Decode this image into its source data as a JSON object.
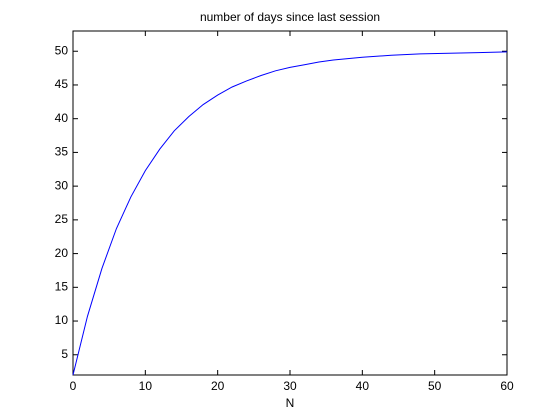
{
  "chart_data": {
    "type": "line",
    "title": "number of days since last session",
    "x_label": "N",
    "x": [
      0,
      2,
      4,
      6,
      8,
      10,
      12,
      14,
      16,
      18,
      20,
      22,
      24,
      26,
      28,
      30,
      32,
      34,
      36,
      38,
      40,
      44,
      48,
      52,
      56,
      60
    ],
    "series": [
      {
        "color": "#0000ff",
        "values": [
          2,
          10.7,
          17.8,
          23.7,
          28.4,
          32.3,
          35.5,
          38.2,
          40.3,
          42.1,
          43.5,
          44.7,
          45.6,
          46.4,
          47.1,
          47.6,
          48.0,
          48.4,
          48.7,
          48.9,
          49.1,
          49.4,
          49.6,
          49.7,
          49.8,
          49.9
        ]
      }
    ],
    "xlim": [
      0,
      60
    ],
    "ylim": [
      2,
      53
    ],
    "xticks": [
      0,
      10,
      20,
      30,
      40,
      50,
      60
    ],
    "yticks": [
      5,
      10,
      15,
      20,
      25,
      30,
      35,
      40,
      45,
      50
    ],
    "grid": false
  }
}
